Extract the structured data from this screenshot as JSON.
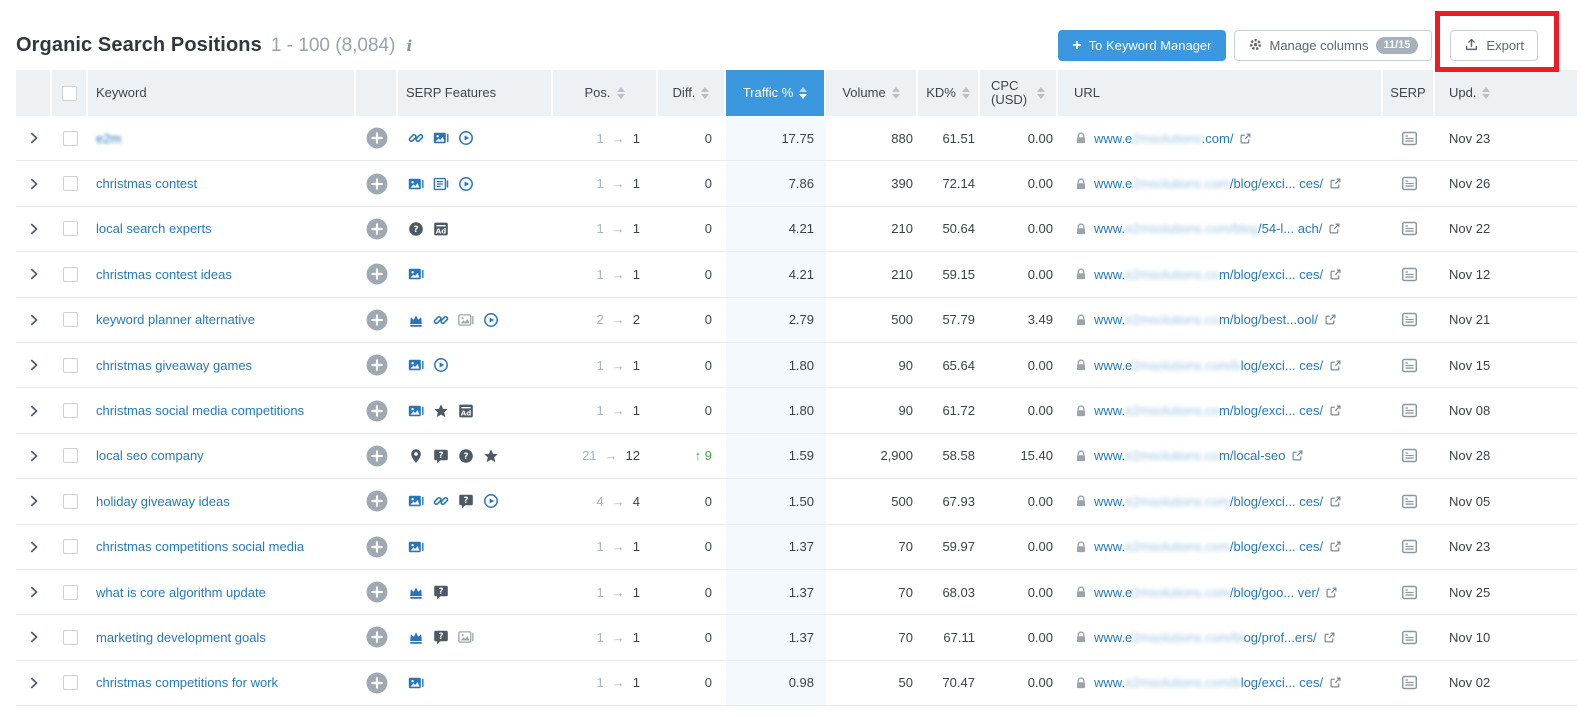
{
  "header": {
    "title": "Organic Search Positions",
    "range": "1 - 100 (8,084)",
    "buttons": {
      "to_keyword_manager": "To Keyword Manager",
      "manage_columns": "Manage columns",
      "manage_columns_badge": "11/15",
      "export": "Export"
    },
    "colors": {
      "primary_button": "#3b97de",
      "export_annotation": "#ec1c24",
      "active_sort_header": "#3b97de",
      "link": "#2479bd",
      "diff_up_green": "#47a447"
    }
  },
  "table": {
    "sorted_column": "Traffic %",
    "columns": [
      {
        "key": "expand",
        "label": "",
        "sortable": false
      },
      {
        "key": "check",
        "label": "",
        "sortable": false
      },
      {
        "key": "keyword",
        "label": "Keyword",
        "sortable": false
      },
      {
        "key": "add",
        "label": "",
        "sortable": false
      },
      {
        "key": "features",
        "label": "SERP Features",
        "sortable": false
      },
      {
        "key": "pos",
        "label": "Pos.",
        "sortable": true
      },
      {
        "key": "diff",
        "label": "Diff.",
        "sortable": true
      },
      {
        "key": "traffic",
        "label": "Traffic %",
        "sortable": true,
        "active": true
      },
      {
        "key": "volume",
        "label": "Volume",
        "sortable": true
      },
      {
        "key": "kd",
        "label": "KD%",
        "sortable": true
      },
      {
        "key": "cpc",
        "label": "CPC (USD)",
        "sortable": true
      },
      {
        "key": "url",
        "label": "URL",
        "sortable": false
      },
      {
        "key": "serp",
        "label": "SERP",
        "sortable": false
      },
      {
        "key": "upd",
        "label": "Upd.",
        "sortable": true
      }
    ],
    "rows": [
      {
        "keyword": "e2m",
        "blurred": true,
        "features": [
          {
            "icon": "link-icon",
            "variant": "blue"
          },
          {
            "icon": "image-icon",
            "variant": "blue"
          },
          {
            "icon": "video-icon",
            "variant": "blue"
          }
        ],
        "pos_old": "1",
        "pos_new": "1",
        "diff": "0",
        "diff_dir": "none",
        "traffic": "17.75",
        "volume": "880",
        "kd": "61.51",
        "cpc": "0.00",
        "url_start": "www.e",
        "url_blur": "2msolutions",
        "url_end": ".com/",
        "upd": "Nov 23"
      },
      {
        "keyword": "christmas contest",
        "blurred": false,
        "features": [
          {
            "icon": "image-icon",
            "variant": "blue"
          },
          {
            "icon": "news-icon",
            "variant": "blue"
          },
          {
            "icon": "video-icon",
            "variant": "blue"
          }
        ],
        "pos_old": "1",
        "pos_new": "1",
        "diff": "0",
        "diff_dir": "none",
        "traffic": "7.86",
        "volume": "390",
        "kd": "72.14",
        "cpc": "0.00",
        "url_start": "www.e",
        "url_blur": "2msolutions.com",
        "url_end": "/blog/exci... ces/",
        "upd": "Nov 26"
      },
      {
        "keyword": "local search experts",
        "blurred": false,
        "features": [
          {
            "icon": "question-icon",
            "variant": "dark"
          },
          {
            "icon": "ad-icon",
            "variant": "dark"
          }
        ],
        "pos_old": "1",
        "pos_new": "1",
        "diff": "0",
        "diff_dir": "none",
        "traffic": "4.21",
        "volume": "210",
        "kd": "50.64",
        "cpc": "0.00",
        "url_start": "www.",
        "url_blur": "e2msolutions.com/blog",
        "url_end": "/54-l... ach/",
        "upd": "Nov 22"
      },
      {
        "keyword": "christmas contest ideas",
        "blurred": false,
        "features": [
          {
            "icon": "image-icon",
            "variant": "blue"
          }
        ],
        "pos_old": "1",
        "pos_new": "1",
        "diff": "0",
        "diff_dir": "none",
        "traffic": "4.21",
        "volume": "210",
        "kd": "59.15",
        "cpc": "0.00",
        "url_start": "www.",
        "url_blur": "e2msolutions.co",
        "url_end": "m/blog/exci... ces/",
        "upd": "Nov 12"
      },
      {
        "keyword": "keyword planner alternative",
        "blurred": false,
        "features": [
          {
            "icon": "crown-icon",
            "variant": "blue"
          },
          {
            "icon": "link-icon",
            "variant": "blue"
          },
          {
            "icon": "image-icon",
            "variant": "light"
          },
          {
            "icon": "video-icon",
            "variant": "blue"
          }
        ],
        "pos_old": "2",
        "pos_new": "2",
        "diff": "0",
        "diff_dir": "none",
        "traffic": "2.79",
        "volume": "500",
        "kd": "57.79",
        "cpc": "3.49",
        "url_start": "www.",
        "url_blur": "e2msolutions.co",
        "url_end": "m/blog/best...ool/",
        "upd": "Nov 21"
      },
      {
        "keyword": "christmas giveaway games",
        "blurred": false,
        "features": [
          {
            "icon": "image-icon",
            "variant": "blue"
          },
          {
            "icon": "video-icon",
            "variant": "blue"
          }
        ],
        "pos_old": "1",
        "pos_new": "1",
        "diff": "0",
        "diff_dir": "none",
        "traffic": "1.80",
        "volume": "90",
        "kd": "65.64",
        "cpc": "0.00",
        "url_start": "www.e",
        "url_blur": "2msolutions.com/b",
        "url_end": "log/exci... ces/",
        "upd": "Nov 15"
      },
      {
        "keyword": "christmas social media competitions",
        "blurred": false,
        "features": [
          {
            "icon": "image-icon",
            "variant": "blue"
          },
          {
            "icon": "star-icon",
            "variant": "dark"
          },
          {
            "icon": "ad-icon",
            "variant": "dark"
          }
        ],
        "pos_old": "1",
        "pos_new": "1",
        "diff": "0",
        "diff_dir": "none",
        "traffic": "1.80",
        "volume": "90",
        "kd": "61.72",
        "cpc": "0.00",
        "url_start": "www.",
        "url_blur": "e2msolutions.co",
        "url_end": "m/blog/exci... ces/",
        "upd": "Nov 08"
      },
      {
        "keyword": "local seo company",
        "blurred": false,
        "features": [
          {
            "icon": "pin-icon",
            "variant": "dark"
          },
          {
            "icon": "faq-icon",
            "variant": "dark"
          },
          {
            "icon": "question-icon",
            "variant": "dark"
          },
          {
            "icon": "star-icon",
            "variant": "dark"
          }
        ],
        "pos_old": "21",
        "pos_new": "12",
        "diff": "9",
        "diff_dir": "up",
        "traffic": "1.59",
        "volume": "2,900",
        "kd": "58.58",
        "cpc": "15.40",
        "url_start": "www.",
        "url_blur": "e2msolutions.co",
        "url_end": "m/local-seo",
        "upd": "Nov 28"
      },
      {
        "keyword": "holiday giveaway ideas",
        "blurred": false,
        "features": [
          {
            "icon": "image-icon",
            "variant": "blue"
          },
          {
            "icon": "link-icon",
            "variant": "blue"
          },
          {
            "icon": "faq-icon",
            "variant": "dark"
          },
          {
            "icon": "video-icon",
            "variant": "blue"
          }
        ],
        "pos_old": "4",
        "pos_new": "4",
        "diff": "0",
        "diff_dir": "none",
        "traffic": "1.50",
        "volume": "500",
        "kd": "67.93",
        "cpc": "0.00",
        "url_start": "www.",
        "url_blur": "e2msolutions.com",
        "url_end": "/blog/exci... ces/",
        "upd": "Nov 05"
      },
      {
        "keyword": "christmas competitions social media",
        "blurred": false,
        "features": [
          {
            "icon": "image-icon",
            "variant": "blue"
          }
        ],
        "pos_old": "1",
        "pos_new": "1",
        "diff": "0",
        "diff_dir": "none",
        "traffic": "1.37",
        "volume": "70",
        "kd": "59.97",
        "cpc": "0.00",
        "url_start": "www.",
        "url_blur": "e2msolutions.com",
        "url_end": "/blog/exci... ces/",
        "upd": "Nov 23"
      },
      {
        "keyword": "what is core algorithm update",
        "blurred": false,
        "features": [
          {
            "icon": "crown-icon",
            "variant": "blue"
          },
          {
            "icon": "faq-icon",
            "variant": "dark"
          }
        ],
        "pos_old": "1",
        "pos_new": "1",
        "diff": "0",
        "diff_dir": "none",
        "traffic": "1.37",
        "volume": "70",
        "kd": "68.03",
        "cpc": "0.00",
        "url_start": "www.e",
        "url_blur": "2msolutions.com",
        "url_end": "/blog/goo... ver/",
        "upd": "Nov 25"
      },
      {
        "keyword": "marketing development goals",
        "blurred": false,
        "features": [
          {
            "icon": "crown-icon",
            "variant": "blue"
          },
          {
            "icon": "faq-icon",
            "variant": "dark"
          },
          {
            "icon": "image-icon",
            "variant": "light"
          }
        ],
        "pos_old": "1",
        "pos_new": "1",
        "diff": "0",
        "diff_dir": "none",
        "traffic": "1.37",
        "volume": "70",
        "kd": "67.11",
        "cpc": "0.00",
        "url_start": "www.e",
        "url_blur": "2msolutions.com/bl",
        "url_end": "og/prof...ers/",
        "upd": "Nov 10"
      },
      {
        "keyword": "christmas competitions for work",
        "blurred": false,
        "features": [
          {
            "icon": "image-icon",
            "variant": "blue"
          }
        ],
        "pos_old": "1",
        "pos_new": "1",
        "diff": "0",
        "diff_dir": "none",
        "traffic": "0.98",
        "volume": "50",
        "kd": "70.47",
        "cpc": "0.00",
        "url_start": "www.",
        "url_blur": "e2msolutions.com/b",
        "url_end": "log/exci... ces/",
        "upd": "Nov 02"
      }
    ],
    "glyphs": {
      "pos_arrow": "→",
      "diff_up_arrow": "↑",
      "info": "i"
    }
  }
}
